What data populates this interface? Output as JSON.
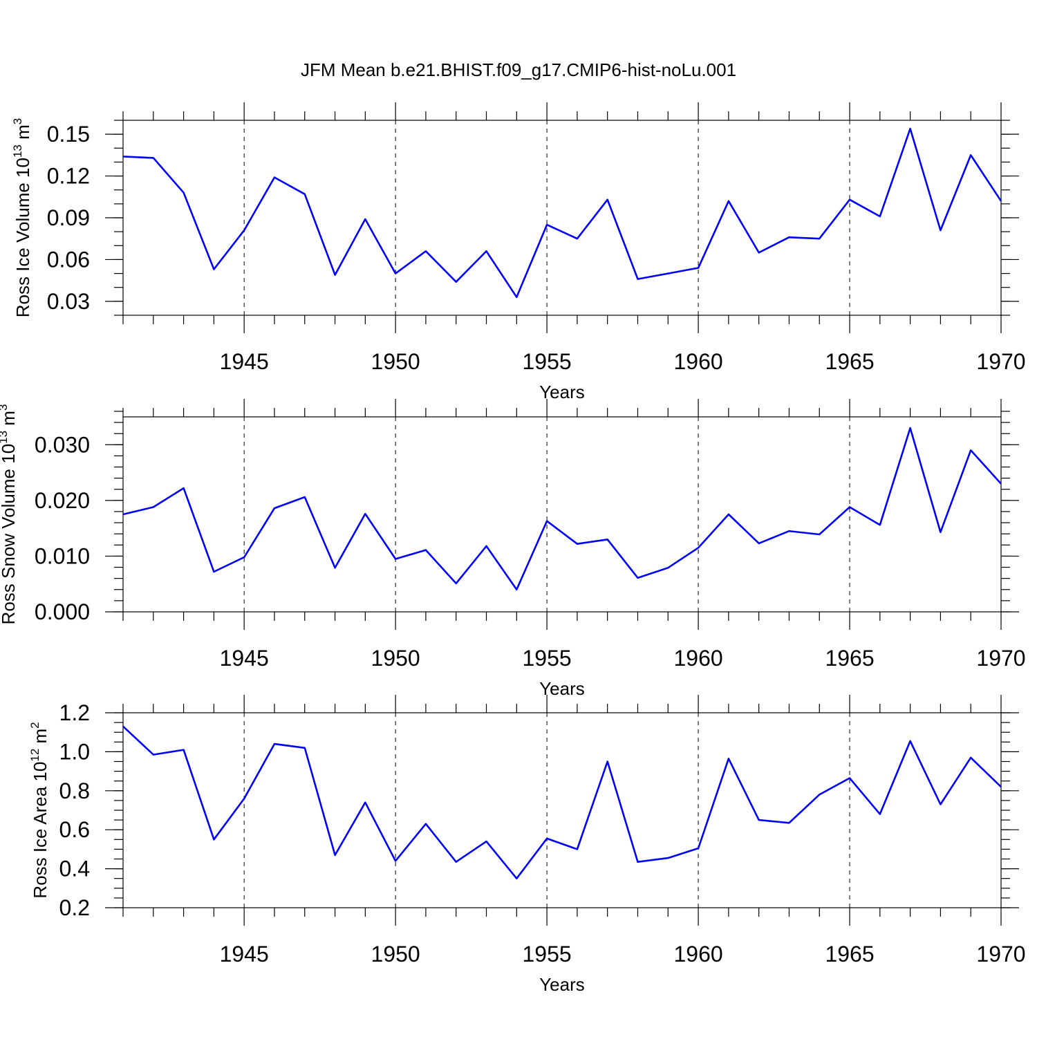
{
  "title": "JFM Mean b.e21.BHIST.f09_g17.CMIP6-hist-noLu.001",
  "colors": {
    "line": "#0000ff",
    "axis": "#000000"
  },
  "chart_data": [
    {
      "type": "line",
      "ylabel": {
        "main": "Ross Ice Volume 10",
        "sup": "13",
        "unit": " m",
        "unit_sup": "3"
      },
      "xlabel": "Years",
      "xlim": [
        1941,
        1970
      ],
      "ylim": [
        0.02,
        0.16
      ],
      "yticks": [
        0.03,
        0.06,
        0.09,
        0.12,
        0.15
      ],
      "ytick_labels": [
        "0.03",
        "0.06",
        "0.09",
        "0.12",
        "0.15"
      ],
      "yminor_step": 0.01,
      "xticks": [
        1945,
        1950,
        1955,
        1960,
        1965,
        1970
      ],
      "xtick_labels": [
        "1945",
        "1950",
        "1955",
        "1960",
        "1965",
        "1970"
      ],
      "grid": "vertical dashed at major x ticks",
      "x": [
        1941,
        1942,
        1943,
        1944,
        1945,
        1946,
        1947,
        1948,
        1949,
        1950,
        1951,
        1952,
        1953,
        1954,
        1955,
        1956,
        1957,
        1958,
        1959,
        1960,
        1961,
        1962,
        1963,
        1964,
        1965,
        1966,
        1967,
        1968,
        1969,
        1970
      ],
      "y": [
        0.134,
        0.133,
        0.108,
        0.053,
        0.081,
        0.119,
        0.107,
        0.049,
        0.089,
        0.05,
        0.066,
        0.044,
        0.066,
        0.033,
        0.085,
        0.075,
        0.103,
        0.046,
        0.05,
        0.054,
        0.102,
        0.065,
        0.076,
        0.075,
        0.103,
        0.091,
        0.154,
        0.081,
        0.135,
        0.102
      ]
    },
    {
      "type": "line",
      "ylabel": {
        "main": "Ross Snow Volume 10",
        "sup": "13",
        "unit": " m",
        "unit_sup": "3"
      },
      "xlabel": "Years",
      "xlim": [
        1941,
        1970
      ],
      "ylim": [
        0.0,
        0.035
      ],
      "yticks": [
        0.0,
        0.01,
        0.02,
        0.03
      ],
      "ytick_labels": [
        "0.000",
        "0.010",
        "0.020",
        "0.030"
      ],
      "yminor_step": 0.002,
      "xticks": [
        1945,
        1950,
        1955,
        1960,
        1965,
        1970
      ],
      "xtick_labels": [
        "1945",
        "1950",
        "1955",
        "1960",
        "1965",
        "1970"
      ],
      "grid": "vertical dashed at major x ticks",
      "x": [
        1941,
        1942,
        1943,
        1944,
        1945,
        1946,
        1947,
        1948,
        1949,
        1950,
        1951,
        1952,
        1953,
        1954,
        1955,
        1956,
        1957,
        1958,
        1959,
        1960,
        1961,
        1962,
        1963,
        1964,
        1965,
        1966,
        1967,
        1968,
        1969,
        1970
      ],
      "y": [
        0.0175,
        0.0188,
        0.0222,
        0.0072,
        0.0098,
        0.0186,
        0.0206,
        0.0079,
        0.0176,
        0.0095,
        0.0111,
        0.0051,
        0.0118,
        0.004,
        0.0163,
        0.0122,
        0.013,
        0.0061,
        0.0079,
        0.0115,
        0.0175,
        0.0123,
        0.0145,
        0.0139,
        0.0188,
        0.0156,
        0.033,
        0.0143,
        0.029,
        0.023
      ]
    },
    {
      "type": "line",
      "ylabel": {
        "main": "Ross Ice Area 10",
        "sup": "12",
        "unit": " m",
        "unit_sup": "2"
      },
      "xlabel": "Years",
      "xlim": [
        1941,
        1970
      ],
      "ylim": [
        0.2,
        1.2
      ],
      "yticks": [
        0.2,
        0.4,
        0.6,
        0.8,
        1.0,
        1.2
      ],
      "ytick_labels": [
        "0.2",
        "0.4",
        "0.6",
        "0.8",
        "1.0",
        "1.2"
      ],
      "yminor_step": 0.05,
      "xticks": [
        1945,
        1950,
        1955,
        1960,
        1965,
        1970
      ],
      "xtick_labels": [
        "1945",
        "1950",
        "1955",
        "1960",
        "1965",
        "1970"
      ],
      "grid": "vertical dashed at major x ticks",
      "x": [
        1941,
        1942,
        1943,
        1944,
        1945,
        1946,
        1947,
        1948,
        1949,
        1950,
        1951,
        1952,
        1953,
        1954,
        1955,
        1956,
        1957,
        1958,
        1959,
        1960,
        1961,
        1962,
        1963,
        1964,
        1965,
        1966,
        1967,
        1968,
        1969,
        1970
      ],
      "y": [
        1.13,
        0.985,
        1.01,
        0.55,
        0.76,
        1.04,
        1.02,
        0.47,
        0.74,
        0.44,
        0.63,
        0.435,
        0.54,
        0.35,
        0.555,
        0.5,
        0.95,
        0.435,
        0.455,
        0.505,
        0.965,
        0.65,
        0.635,
        0.78,
        0.865,
        0.68,
        1.055,
        0.73,
        0.97,
        0.82
      ]
    }
  ]
}
